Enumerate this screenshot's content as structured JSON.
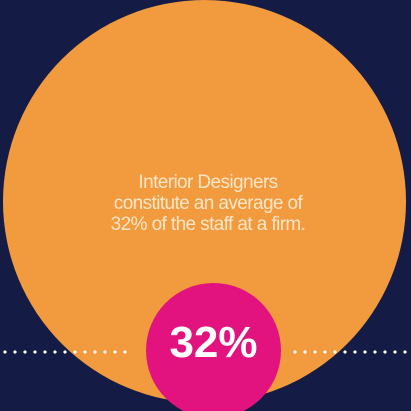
{
  "caption": {
    "line1": "Interior Designers",
    "line2": "constitute an average of",
    "line3": "32% of the staff at a firm."
  },
  "badge": {
    "value": "32%"
  },
  "colors": {
    "background": "#141b44",
    "circle": "#f19a3e",
    "badge": "#e2137e",
    "text": "#ffffff"
  }
}
